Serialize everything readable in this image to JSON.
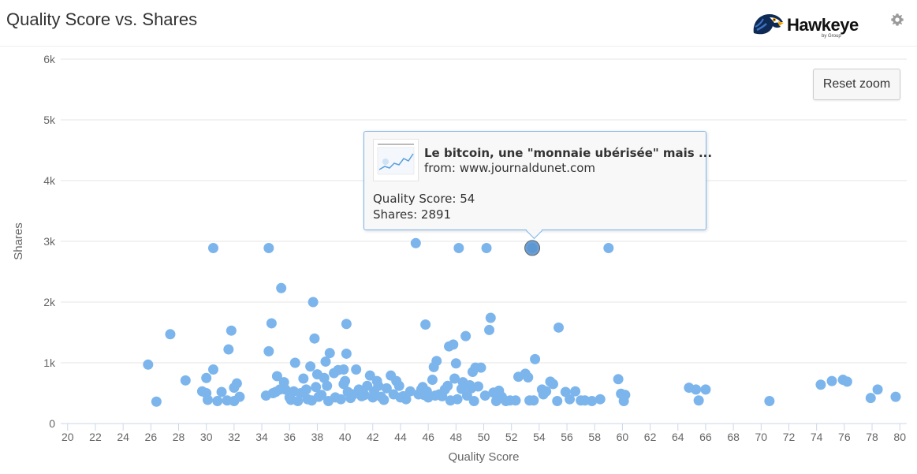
{
  "header": {
    "title": "Quality Score vs. Shares",
    "logo_text": "Hawkeye",
    "logo_subtext": "by Group"
  },
  "controls": {
    "reset_zoom_label": "Reset zoom"
  },
  "tooltip": {
    "article_title": "Le bitcoin, une \"monnaie ubérisée\" mais ...",
    "source": "from: www.journaldunet.com",
    "quality_line": "Quality Score: 54",
    "shares_line": "Shares: 2891"
  },
  "colors": {
    "point": "#7cb5ec",
    "point_highlight": "#5b95d0",
    "grid": "#e6e6e6",
    "axis_text": "#666666",
    "title_text": "#333333"
  },
  "chart_data": {
    "type": "scatter",
    "title": "Quality Score vs. Shares",
    "xlabel": "Quality Score",
    "ylabel": "Shares",
    "xlim": [
      19.5,
      80.5
    ],
    "ylim": [
      0,
      6000
    ],
    "xticks": [
      20,
      22,
      24,
      26,
      28,
      30,
      32,
      34,
      36,
      38,
      40,
      42,
      44,
      46,
      48,
      50,
      52,
      54,
      56,
      58,
      60,
      62,
      64,
      66,
      68,
      70,
      72,
      74,
      76,
      78,
      80
    ],
    "yticks": [
      0,
      1000,
      2000,
      3000,
      4000,
      5000,
      6000
    ],
    "ytick_labels": [
      "0",
      "1k",
      "2k",
      "3k",
      "4k",
      "5k",
      "6k"
    ],
    "grid": "horizontal",
    "legend": "none",
    "highlighted_point": {
      "x": 53.5,
      "y": 2891
    },
    "points": [
      [
        25.8,
        970
      ],
      [
        26.4,
        360
      ],
      [
        27.4,
        1470
      ],
      [
        28.5,
        710
      ],
      [
        29.7,
        530
      ],
      [
        30.0,
        500
      ],
      [
        30.0,
        750
      ],
      [
        30.1,
        390
      ],
      [
        30.5,
        890
      ],
      [
        30.5,
        2890
      ],
      [
        30.8,
        370
      ],
      [
        31.1,
        520
      ],
      [
        31.5,
        380
      ],
      [
        31.6,
        1220
      ],
      [
        31.8,
        1530
      ],
      [
        32.0,
        370
      ],
      [
        32.0,
        590
      ],
      [
        32.2,
        660
      ],
      [
        32.4,
        440
      ],
      [
        34.3,
        460
      ],
      [
        34.5,
        1190
      ],
      [
        34.5,
        2890
      ],
      [
        34.7,
        1650
      ],
      [
        34.8,
        500
      ],
      [
        35.0,
        520
      ],
      [
        35.1,
        780
      ],
      [
        35.3,
        560
      ],
      [
        35.4,
        2230
      ],
      [
        35.6,
        680
      ],
      [
        35.7,
        560
      ],
      [
        36.0,
        430
      ],
      [
        36.1,
        390
      ],
      [
        36.3,
        530
      ],
      [
        36.4,
        1000
      ],
      [
        36.6,
        370
      ],
      [
        36.8,
        500
      ],
      [
        37.0,
        740
      ],
      [
        37.2,
        560
      ],
      [
        37.3,
        400
      ],
      [
        37.5,
        940
      ],
      [
        37.6,
        380
      ],
      [
        37.7,
        2000
      ],
      [
        37.8,
        1400
      ],
      [
        37.9,
        600
      ],
      [
        38.0,
        810
      ],
      [
        38.1,
        440
      ],
      [
        38.3,
        470
      ],
      [
        38.5,
        750
      ],
      [
        38.6,
        1020
      ],
      [
        38.7,
        620
      ],
      [
        38.8,
        370
      ],
      [
        38.9,
        1160
      ],
      [
        39.2,
        830
      ],
      [
        39.3,
        430
      ],
      [
        39.5,
        880
      ],
      [
        39.7,
        400
      ],
      [
        39.9,
        890
      ],
      [
        39.9,
        650
      ],
      [
        40.0,
        700
      ],
      [
        40.1,
        1150
      ],
      [
        40.1,
        1640
      ],
      [
        40.2,
        520
      ],
      [
        40.4,
        420
      ],
      [
        40.6,
        480
      ],
      [
        40.8,
        890
      ],
      [
        41.0,
        560
      ],
      [
        41.2,
        450
      ],
      [
        41.4,
        470
      ],
      [
        41.6,
        620
      ],
      [
        41.8,
        790
      ],
      [
        42.0,
        430
      ],
      [
        42.1,
        530
      ],
      [
        42.3,
        700
      ],
      [
        42.4,
        620
      ],
      [
        42.6,
        440
      ],
      [
        42.8,
        390
      ],
      [
        43.0,
        580
      ],
      [
        43.3,
        790
      ],
      [
        43.5,
        480
      ],
      [
        43.7,
        700
      ],
      [
        43.9,
        620
      ],
      [
        44.0,
        430
      ],
      [
        44.2,
        450
      ],
      [
        44.4,
        400
      ],
      [
        44.7,
        530
      ],
      [
        45.1,
        2970
      ],
      [
        45.3,
        480
      ],
      [
        45.5,
        560
      ],
      [
        45.6,
        600
      ],
      [
        45.7,
        470
      ],
      [
        45.8,
        1630
      ],
      [
        45.9,
        530
      ],
      [
        46.0,
        430
      ],
      [
        46.3,
        720
      ],
      [
        46.4,
        930
      ],
      [
        46.5,
        460
      ],
      [
        46.6,
        1030
      ],
      [
        46.8,
        480
      ],
      [
        47.0,
        450
      ],
      [
        47.2,
        560
      ],
      [
        47.4,
        620
      ],
      [
        47.5,
        1270
      ],
      [
        47.6,
        380
      ],
      [
        47.8,
        1300
      ],
      [
        47.9,
        740
      ],
      [
        48.0,
        990
      ],
      [
        48.1,
        400
      ],
      [
        48.2,
        2890
      ],
      [
        48.4,
        570
      ],
      [
        48.5,
        680
      ],
      [
        48.7,
        1440
      ],
      [
        48.8,
        460
      ],
      [
        49.0,
        630
      ],
      [
        49.1,
        580
      ],
      [
        49.2,
        850
      ],
      [
        49.3,
        370
      ],
      [
        49.4,
        920
      ],
      [
        49.6,
        610
      ],
      [
        49.8,
        920
      ],
      [
        50.1,
        460
      ],
      [
        50.2,
        2890
      ],
      [
        50.4,
        1540
      ],
      [
        50.5,
        1740
      ],
      [
        50.7,
        510
      ],
      [
        50.9,
        370
      ],
      [
        51.1,
        540
      ],
      [
        51.3,
        440
      ],
      [
        51.6,
        370
      ],
      [
        51.9,
        380
      ],
      [
        52.3,
        380
      ],
      [
        52.5,
        770
      ],
      [
        53.0,
        820
      ],
      [
        53.2,
        760
      ],
      [
        53.3,
        380
      ],
      [
        53.5,
        2891
      ],
      [
        53.6,
        380
      ],
      [
        53.7,
        1060
      ],
      [
        54.2,
        560
      ],
      [
        54.3,
        480
      ],
      [
        54.5,
        530
      ],
      [
        54.8,
        690
      ],
      [
        55.0,
        650
      ],
      [
        55.3,
        370
      ],
      [
        55.4,
        1580
      ],
      [
        55.9,
        520
      ],
      [
        56.2,
        400
      ],
      [
        56.6,
        530
      ],
      [
        57.0,
        380
      ],
      [
        57.3,
        380
      ],
      [
        57.8,
        370
      ],
      [
        58.4,
        400
      ],
      [
        59.0,
        2890
      ],
      [
        59.7,
        730
      ],
      [
        59.9,
        490
      ],
      [
        60.1,
        370
      ],
      [
        60.2,
        470
      ],
      [
        64.8,
        590
      ],
      [
        65.3,
        560
      ],
      [
        65.5,
        380
      ],
      [
        66.0,
        560
      ],
      [
        70.6,
        370
      ],
      [
        74.3,
        640
      ],
      [
        75.1,
        700
      ],
      [
        75.9,
        720
      ],
      [
        76.2,
        690
      ],
      [
        77.9,
        420
      ],
      [
        78.4,
        560
      ],
      [
        79.7,
        440
      ]
    ]
  }
}
